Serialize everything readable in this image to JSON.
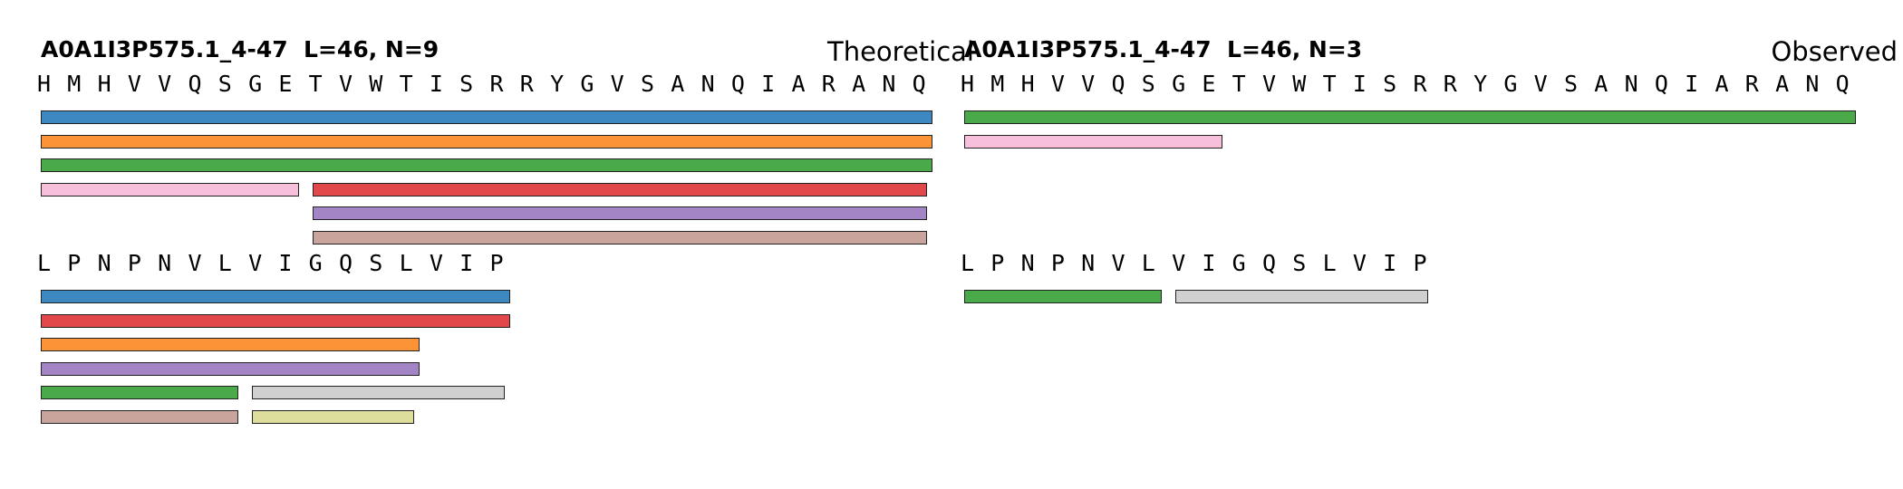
{
  "chart_data": [
    {
      "type": "peptide-coverage",
      "title": "A0A1I3P575.1_4-47  L=46, N=9",
      "label": "Theoretical",
      "rows": [
        {
          "residues": [
            "H",
            "M",
            "H",
            "V",
            "V",
            "Q",
            "S",
            "G",
            "E",
            "T",
            "V",
            "W",
            "T",
            "I",
            "S",
            "R",
            "R",
            "Y",
            "G",
            "V",
            "S",
            "A",
            "N",
            "Q",
            "I",
            "A",
            "R",
            "A",
            "N",
            "Q"
          ],
          "peptides": [
            {
              "start": 0,
              "end": 29,
              "color": "#3d88c0"
            },
            {
              "start": 0,
              "end": 29,
              "color": "#fc9437"
            },
            {
              "start": 0,
              "end": 29,
              "color": "#4aaa4a"
            },
            {
              "start": 0,
              "end": 8,
              "color": "#f7bfd9"
            },
            {
              "start": 9,
              "end": 29,
              "color": "#e04849"
            },
            {
              "start": 9,
              "end": 29,
              "color": "#a385c6"
            },
            {
              "start": 9,
              "end": 29,
              "color": "#c9a49d"
            }
          ],
          "lanes": [
            0,
            1,
            2,
            3,
            3,
            4,
            5
          ]
        },
        {
          "residues": [
            "L",
            "P",
            "N",
            "P",
            "N",
            "V",
            "L",
            "V",
            "I",
            "G",
            "Q",
            "S",
            "L",
            "V",
            "I",
            "P"
          ],
          "peptides": [
            {
              "start": 0,
              "end": 15,
              "color": "#3d88c0"
            },
            {
              "start": 0,
              "end": 15,
              "color": "#e04849"
            },
            {
              "start": 0,
              "end": 12,
              "color": "#fc9437"
            },
            {
              "start": 0,
              "end": 12,
              "color": "#a385c6"
            },
            {
              "start": 0,
              "end": 6,
              "color": "#4aaa4a"
            },
            {
              "start": 7,
              "end": 15,
              "color": "#d0d0d0"
            },
            {
              "start": 0,
              "end": 6,
              "color": "#c9a49d"
            },
            {
              "start": 7,
              "end": 12,
              "color": "#dede9c"
            }
          ],
          "lanes": [
            0,
            1,
            2,
            3,
            4,
            4,
            5,
            5
          ]
        }
      ]
    },
    {
      "type": "peptide-coverage",
      "title": "A0A1I3P575.1_4-47  L=46, N=3",
      "label": "Observed",
      "rows": [
        {
          "residues": [
            "H",
            "M",
            "H",
            "V",
            "V",
            "Q",
            "S",
            "G",
            "E",
            "T",
            "V",
            "W",
            "T",
            "I",
            "S",
            "R",
            "R",
            "Y",
            "G",
            "V",
            "S",
            "A",
            "N",
            "Q",
            "I",
            "A",
            "R",
            "A",
            "N",
            "Q"
          ],
          "peptides": [
            {
              "start": 0,
              "end": 29,
              "color": "#4aaa4a"
            },
            {
              "start": 0,
              "end": 8,
              "color": "#f7bfd9"
            }
          ],
          "lanes": [
            0,
            1
          ]
        },
        {
          "residues": [
            "L",
            "P",
            "N",
            "P",
            "N",
            "V",
            "L",
            "V",
            "I",
            "G",
            "Q",
            "S",
            "L",
            "V",
            "I",
            "P"
          ],
          "peptides": [
            {
              "start": 0,
              "end": 6,
              "color": "#4aaa4a"
            },
            {
              "start": 7,
              "end": 15,
              "color": "#d0d0d0"
            }
          ],
          "lanes": [
            0,
            0
          ]
        }
      ]
    }
  ]
}
